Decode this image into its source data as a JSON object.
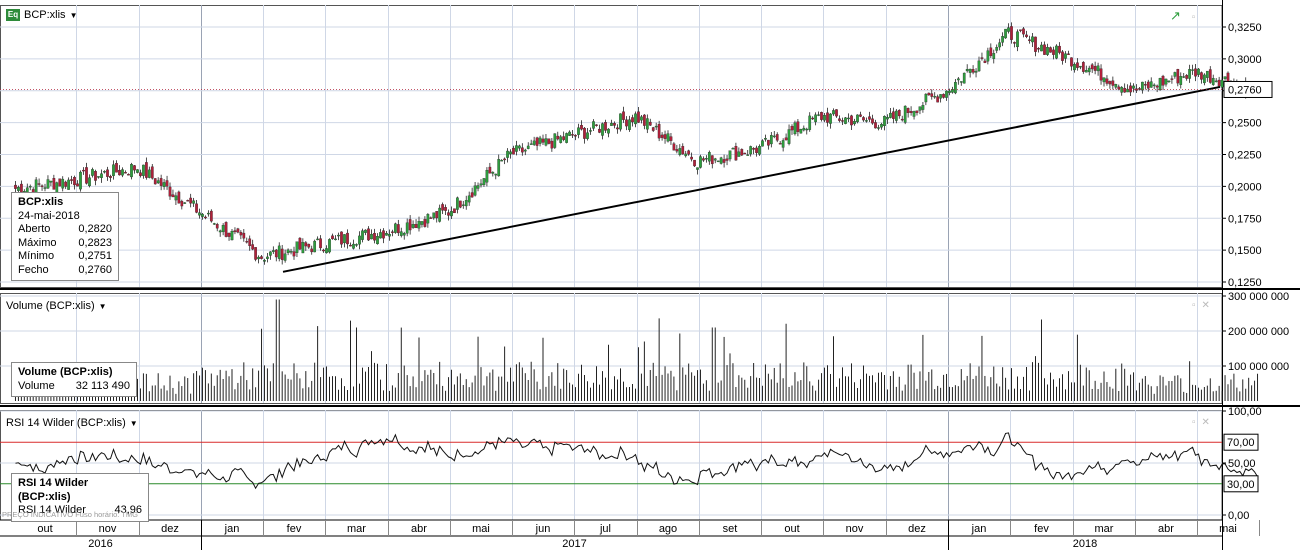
{
  "price_panel": {
    "title": "BCP:xlis",
    "icon_label": "Eq",
    "last_price_label": "0,2760",
    "y_ticks": [
      "0,3250",
      "0,3000",
      "0,2750",
      "0,2500",
      "0,2250",
      "0,2000",
      "0,1750",
      "0,1500",
      "0,1250"
    ],
    "info": {
      "name": "BCP:xlis",
      "date": "24-mai-2018",
      "rows": [
        {
          "label": "Aberto",
          "value": "0,2820"
        },
        {
          "label": "Máximo",
          "value": "0,2823"
        },
        {
          "label": "Mínimo",
          "value": "0,2751"
        },
        {
          "label": "Fecho",
          "value": "0,2760"
        }
      ]
    }
  },
  "volume_panel": {
    "title": "Volume (BCP:xlis)",
    "y_ticks": [
      "300 000 000",
      "200 000 000",
      "100 000 000"
    ],
    "info": {
      "name": "Volume (BCP:xlis)",
      "label": "Volume",
      "value": "32 113 490"
    }
  },
  "rsi_panel": {
    "title": "RSI 14 Wilder (BCP:xlis)",
    "y_ticks": [
      "100,00",
      "50,00",
      "0,00"
    ],
    "level_labels": [
      "70,00",
      "30,00"
    ],
    "info": {
      "name": "RSI 14 Wilder (BCP:xlis)",
      "label": "RSI 14 Wilder",
      "value": "43,96"
    }
  },
  "source_text": "PREÇO INDICATIVO   Fuso horário: TMG",
  "x_months": [
    "out",
    "nov",
    "dez",
    "jan",
    "fev",
    "mar",
    "abr",
    "mai",
    "jun",
    "jul",
    "ago",
    "set",
    "out",
    "nov",
    "dez",
    "jan",
    "fev",
    "mar",
    "abr",
    "mai"
  ],
  "x_years": [
    "2016",
    "2017",
    "2018"
  ],
  "colors": {
    "up": "#2e9e3e",
    "down": "#b0203a",
    "rsi_upper": "#d92b2b",
    "rsi_lower": "#2a8a2a",
    "grid": "#cfd7e6",
    "trend": "#000000"
  },
  "chart_data": [
    {
      "type": "candlestick",
      "title": "BCP:xlis",
      "ylim": [
        0.125,
        0.335
      ],
      "last_close": 0.276,
      "monthly_close_approx": [
        {
          "month": "out 2016",
          "close": 0.205
        },
        {
          "month": "nov 2016",
          "close": 0.215
        },
        {
          "month": "dez 2016",
          "close": 0.18
        },
        {
          "month": "jan 2017",
          "close": 0.145
        },
        {
          "month": "fev 2017",
          "close": 0.155
        },
        {
          "month": "mar 2017",
          "close": 0.165
        },
        {
          "month": "abr 2017",
          "close": 0.18
        },
        {
          "month": "mai 2017",
          "close": 0.225
        },
        {
          "month": "jun 2017",
          "close": 0.24
        },
        {
          "month": "jul 2017",
          "close": 0.255
        },
        {
          "month": "ago 2017",
          "close": 0.22
        },
        {
          "month": "set 2017",
          "close": 0.23
        },
        {
          "month": "out 2017",
          "close": 0.255
        },
        {
          "month": "nov 2017",
          "close": 0.25
        },
        {
          "month": "dez 2017",
          "close": 0.275
        },
        {
          "month": "jan 2018",
          "close": 0.32
        },
        {
          "month": "fev 2018",
          "close": 0.3
        },
        {
          "month": "mar 2018",
          "close": 0.275
        },
        {
          "month": "abr 2018",
          "close": 0.29
        },
        {
          "month": "mai 2018",
          "close": 0.276
        }
      ],
      "trendline": [
        {
          "date": "fev 2017",
          "value": 0.133
        },
        {
          "date": "mai 2018",
          "value": 0.278
        }
      ]
    },
    {
      "type": "bar",
      "title": "Volume (BCP:xlis)",
      "ylim": [
        0,
        300000000
      ],
      "last_value": 32113490,
      "peak": {
        "date": "fev 2017",
        "value": 290000000
      }
    },
    {
      "type": "line",
      "title": "RSI 14 Wilder (BCP:xlis)",
      "ylim": [
        0,
        100
      ],
      "levels": [
        70,
        30
      ],
      "last_value": 43.96
    }
  ]
}
